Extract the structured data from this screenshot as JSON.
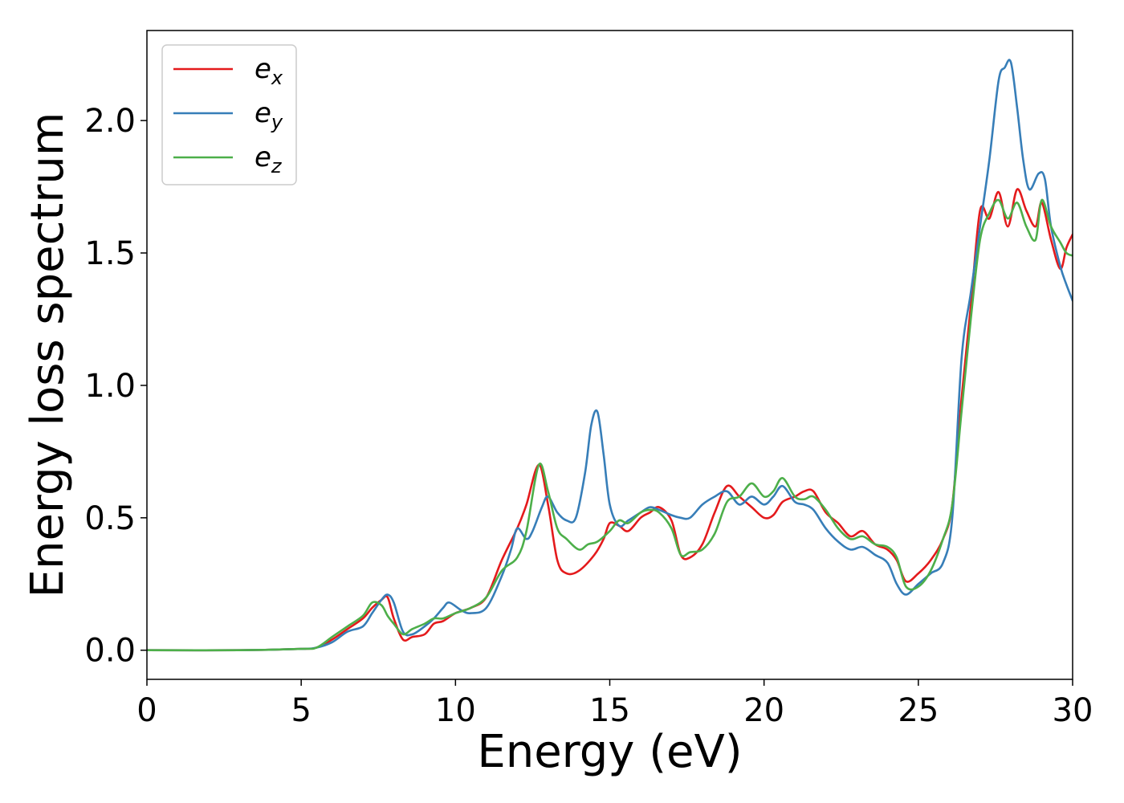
{
  "chart_data": {
    "type": "line",
    "title": "",
    "xlabel": "Energy (eV)",
    "ylabel": "Energy loss spectrum",
    "xlim": [
      0,
      30
    ],
    "ylim": [
      -0.11,
      2.34
    ],
    "xticks": [
      "0",
      "5",
      "10",
      "15",
      "20",
      "25",
      "30"
    ],
    "yticks": [
      "0.0",
      "0.5",
      "1.0",
      "1.5",
      "2.0"
    ],
    "grid": false,
    "legend_position": "top-left",
    "series": [
      {
        "name": "e",
        "subscript": "x",
        "color": "#e41a1c",
        "x": [
          0,
          3,
          5,
          5.5,
          6,
          6.5,
          7,
          7.3,
          7.6,
          7.8,
          8.0,
          8.3,
          8.6,
          9.0,
          9.3,
          9.6,
          10.0,
          10.5,
          11.0,
          11.5,
          12.0,
          12.3,
          12.7,
          13.0,
          13.3,
          13.6,
          14.0,
          14.5,
          14.8,
          15.0,
          15.3,
          15.6,
          16.0,
          16.3,
          16.6,
          17.0,
          17.3,
          17.6,
          18.0,
          18.4,
          18.8,
          19.2,
          19.6,
          20.0,
          20.3,
          20.6,
          21.0,
          21.3,
          21.6,
          22.0,
          22.4,
          22.8,
          23.2,
          23.6,
          24.0,
          24.3,
          24.6,
          25.0,
          25.4,
          25.8,
          26.1,
          26.4,
          26.7,
          27.0,
          27.3,
          27.6,
          27.9,
          28.2,
          28.5,
          28.8,
          29.0,
          29.3,
          29.6,
          29.8,
          30.0
        ],
        "y": [
          0.0,
          0.0,
          0.005,
          0.01,
          0.04,
          0.08,
          0.12,
          0.16,
          0.19,
          0.2,
          0.12,
          0.04,
          0.05,
          0.06,
          0.1,
          0.11,
          0.14,
          0.16,
          0.2,
          0.34,
          0.46,
          0.55,
          0.7,
          0.55,
          0.34,
          0.29,
          0.3,
          0.36,
          0.42,
          0.48,
          0.47,
          0.45,
          0.5,
          0.52,
          0.54,
          0.49,
          0.36,
          0.35,
          0.4,
          0.52,
          0.62,
          0.58,
          0.54,
          0.5,
          0.51,
          0.56,
          0.58,
          0.6,
          0.6,
          0.52,
          0.48,
          0.43,
          0.45,
          0.4,
          0.38,
          0.34,
          0.26,
          0.29,
          0.34,
          0.42,
          0.55,
          0.95,
          1.3,
          1.66,
          1.63,
          1.73,
          1.6,
          1.74,
          1.66,
          1.6,
          1.69,
          1.55,
          1.44,
          1.52,
          1.57
        ]
      },
      {
        "name": "e",
        "subscript": "y",
        "color": "#377eb8",
        "x": [
          0,
          3,
          5,
          5.5,
          6,
          6.5,
          7,
          7.3,
          7.6,
          7.8,
          8.0,
          8.3,
          8.6,
          9.0,
          9.3,
          9.6,
          9.8,
          10.2,
          10.5,
          11.0,
          11.5,
          11.8,
          12.0,
          12.3,
          12.5,
          12.8,
          13.0,
          13.3,
          13.6,
          13.9,
          14.2,
          14.4,
          14.6,
          14.8,
          15.0,
          15.3,
          15.6,
          16.0,
          16.3,
          16.6,
          17.0,
          17.3,
          17.6,
          18.0,
          18.4,
          18.8,
          19.2,
          19.6,
          20.0,
          20.3,
          20.6,
          21.0,
          21.3,
          21.6,
          22.0,
          22.4,
          22.8,
          23.2,
          23.6,
          24.0,
          24.3,
          24.6,
          25.0,
          25.4,
          25.8,
          26.1,
          26.4,
          26.7,
          27.0,
          27.3,
          27.6,
          27.8,
          28.0,
          28.2,
          28.4,
          28.6,
          28.9,
          29.1,
          29.3,
          29.6,
          29.8,
          30.0
        ],
        "y": [
          0.0,
          0.0,
          0.005,
          0.01,
          0.03,
          0.07,
          0.09,
          0.14,
          0.19,
          0.21,
          0.18,
          0.07,
          0.06,
          0.09,
          0.12,
          0.16,
          0.18,
          0.15,
          0.14,
          0.16,
          0.28,
          0.38,
          0.46,
          0.42,
          0.45,
          0.54,
          0.58,
          0.52,
          0.49,
          0.5,
          0.67,
          0.85,
          0.9,
          0.74,
          0.55,
          0.47,
          0.49,
          0.52,
          0.54,
          0.53,
          0.51,
          0.5,
          0.5,
          0.55,
          0.58,
          0.6,
          0.55,
          0.58,
          0.55,
          0.58,
          0.62,
          0.56,
          0.55,
          0.53,
          0.46,
          0.41,
          0.38,
          0.39,
          0.36,
          0.33,
          0.25,
          0.21,
          0.25,
          0.29,
          0.33,
          0.5,
          1.1,
          1.35,
          1.6,
          1.85,
          2.15,
          2.2,
          2.22,
          2.05,
          1.85,
          1.74,
          1.8,
          1.78,
          1.6,
          1.45,
          1.38,
          1.32
        ]
      },
      {
        "name": "e",
        "subscript": "z",
        "color": "#4daf4a",
        "x": [
          0,
          3,
          5,
          5.5,
          6,
          6.5,
          7,
          7.3,
          7.6,
          7.8,
          8.0,
          8.3,
          8.6,
          9.0,
          9.3,
          9.6,
          10.0,
          10.5,
          11.0,
          11.5,
          12.0,
          12.3,
          12.7,
          13.0,
          13.3,
          13.6,
          14.0,
          14.3,
          14.6,
          15.0,
          15.3,
          15.6,
          16.0,
          16.3,
          16.6,
          17.0,
          17.3,
          17.6,
          18.0,
          18.4,
          18.8,
          19.2,
          19.6,
          20.0,
          20.3,
          20.6,
          21.0,
          21.3,
          21.6,
          22.0,
          22.4,
          22.8,
          23.2,
          23.6,
          24.0,
          24.3,
          24.6,
          25.0,
          25.4,
          25.8,
          26.1,
          26.4,
          26.7,
          27.0,
          27.3,
          27.6,
          27.9,
          28.2,
          28.5,
          28.8,
          29.0,
          29.3,
          29.6,
          29.8,
          30.0
        ],
        "y": [
          0.0,
          0.0,
          0.005,
          0.01,
          0.05,
          0.09,
          0.13,
          0.18,
          0.17,
          0.13,
          0.1,
          0.06,
          0.08,
          0.1,
          0.12,
          0.12,
          0.14,
          0.16,
          0.2,
          0.3,
          0.35,
          0.45,
          0.7,
          0.6,
          0.46,
          0.42,
          0.38,
          0.4,
          0.41,
          0.45,
          0.49,
          0.48,
          0.52,
          0.53,
          0.52,
          0.46,
          0.36,
          0.37,
          0.38,
          0.44,
          0.56,
          0.58,
          0.63,
          0.58,
          0.6,
          0.65,
          0.58,
          0.57,
          0.58,
          0.53,
          0.46,
          0.42,
          0.43,
          0.4,
          0.39,
          0.35,
          0.24,
          0.24,
          0.3,
          0.42,
          0.55,
          0.9,
          1.25,
          1.55,
          1.65,
          1.7,
          1.63,
          1.69,
          1.6,
          1.55,
          1.7,
          1.6,
          1.54,
          1.5,
          1.49
        ]
      }
    ]
  }
}
